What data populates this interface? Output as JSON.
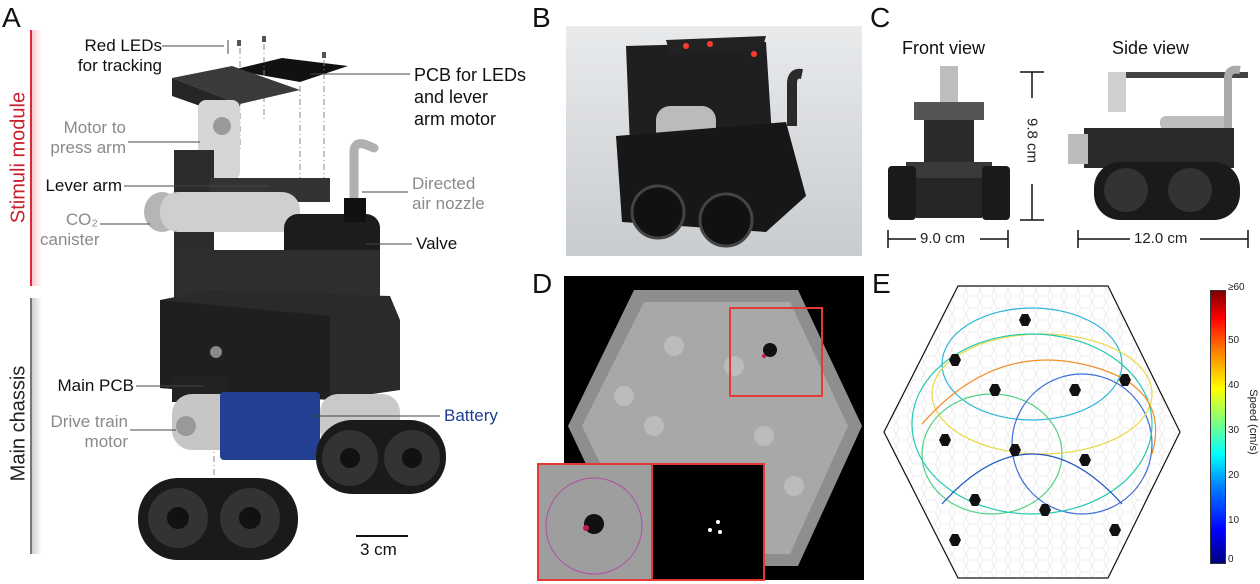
{
  "panels": {
    "a": "A",
    "b": "B",
    "c": "C",
    "d": "D",
    "e": "E"
  },
  "panel_a": {
    "module_stimuli": "Stimuli module",
    "module_chassis": "Main chassis",
    "labels": {
      "red_leds": [
        "Red LEDs",
        "for tracking"
      ],
      "pcb_leds": [
        "PCB for LEDs",
        "and lever",
        "arm motor"
      ],
      "motor_press": [
        "Motor to",
        "press arm"
      ],
      "lever_arm": "Lever arm",
      "air_nozzle": [
        "Directed",
        "air nozzle"
      ],
      "co2": [
        "CO₂",
        "canister"
      ],
      "valve": "Valve",
      "main_pcb": "Main PCB",
      "drive_motor": [
        "Drive train",
        "motor"
      ],
      "battery": "Battery"
    },
    "scale_bar": "3 cm"
  },
  "panel_c": {
    "front_view": "Front view",
    "side_view": "Side view",
    "height": "9.8 cm",
    "front_width": "9.0 cm",
    "side_width": "12.0 cm"
  },
  "panel_e": {
    "colorbar_label": "Speed (cm/s)",
    "colorbar_ticks": [
      "≥60",
      "50",
      "40",
      "30",
      "20",
      "10",
      "0"
    ]
  }
}
